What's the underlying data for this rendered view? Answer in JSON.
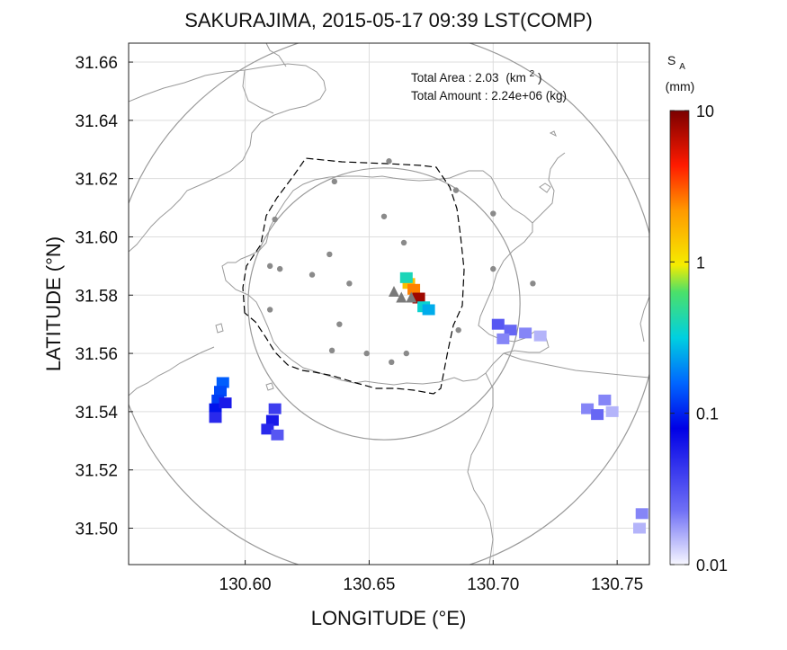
{
  "chart_data": {
    "type": "heatmap",
    "title": "SAKURAJIMA, 2015-05-17 09:39 LST(COMP)",
    "xlabel": "LONGITUDE (°E)",
    "ylabel": "LATITUDE (°N)",
    "xlim": [
      130.553,
      130.763
    ],
    "ylim": [
      31.4875,
      31.6665
    ],
    "xticks": [
      "130.60",
      "130.65",
      "130.70",
      "130.75"
    ],
    "yticks": [
      "31.50",
      "31.52",
      "31.54",
      "31.56",
      "31.58",
      "31.60",
      "31.62",
      "31.64",
      "31.66"
    ],
    "grid": true,
    "annotation": {
      "area_label": "Total Area   : 2.03",
      "area_unit": "(km",
      "area_sup": "2",
      "area_close": ")",
      "amount_label": "Total Amount : 2.24e+06 (kg)"
    },
    "colorbar": {
      "label": "S",
      "label_sub": "A",
      "unit": "(mm)",
      "scale": "log",
      "range": [
        0.01,
        10
      ],
      "ticks": [
        "10",
        "1",
        "0.1",
        "0.01"
      ]
    },
    "vents": [
      {
        "lon": 130.66,
        "lat": 31.581
      },
      {
        "lon": 130.663,
        "lat": 31.579
      },
      {
        "lon": 130.667,
        "lat": 31.579
      }
    ],
    "stations": [
      [
        130.658,
        31.626
      ],
      [
        130.636,
        31.619
      ],
      [
        130.685,
        31.616
      ],
      [
        130.612,
        31.606
      ],
      [
        130.656,
        31.607
      ],
      [
        130.7,
        31.608
      ],
      [
        130.61,
        31.59
      ],
      [
        130.614,
        31.589
      ],
      [
        130.634,
        31.594
      ],
      [
        130.664,
        31.598
      ],
      [
        130.7,
        31.589
      ],
      [
        130.627,
        31.587
      ],
      [
        130.642,
        31.584
      ],
      [
        130.716,
        31.584
      ],
      [
        130.61,
        31.575
      ],
      [
        130.686,
        31.568
      ],
      [
        130.638,
        31.57
      ],
      [
        130.635,
        31.561
      ],
      [
        130.649,
        31.56
      ],
      [
        130.665,
        31.56
      ],
      [
        130.659,
        31.557
      ]
    ],
    "circles": [
      {
        "lon": 130.656,
        "lat": 31.577,
        "radius_km": 10.5
      },
      {
        "lon": 130.656,
        "lat": 31.577,
        "radius_km": 5.2
      }
    ],
    "cells": [
      [
        130.591,
        31.55,
        0.15
      ],
      [
        130.59,
        31.547,
        0.13
      ],
      [
        130.589,
        31.544,
        0.12
      ],
      [
        130.588,
        31.541,
        0.09
      ],
      [
        130.592,
        31.543,
        0.06
      ],
      [
        130.588,
        31.538,
        0.05
      ],
      [
        130.612,
        31.541,
        0.04
      ],
      [
        130.611,
        31.537,
        0.06
      ],
      [
        130.609,
        31.534,
        0.05
      ],
      [
        130.613,
        31.532,
        0.03
      ],
      [
        130.666,
        31.584,
        1.5
      ],
      [
        130.668,
        31.582,
        2.5
      ],
      [
        130.67,
        31.579,
        8.0
      ],
      [
        130.672,
        31.576,
        0.35
      ],
      [
        130.674,
        31.575,
        0.25
      ],
      [
        130.665,
        31.586,
        0.4
      ],
      [
        130.702,
        31.57,
        0.03
      ],
      [
        130.707,
        31.568,
        0.025
      ],
      [
        130.713,
        31.567,
        0.02
      ],
      [
        130.719,
        31.566,
        0.015
      ],
      [
        130.704,
        31.565,
        0.02
      ],
      [
        130.738,
        31.541,
        0.02
      ],
      [
        130.742,
        31.539,
        0.025
      ],
      [
        130.745,
        31.544,
        0.02
      ],
      [
        130.748,
        31.54,
        0.015
      ],
      [
        130.76,
        31.505,
        0.02
      ],
      [
        130.759,
        31.5,
        0.015
      ]
    ]
  }
}
